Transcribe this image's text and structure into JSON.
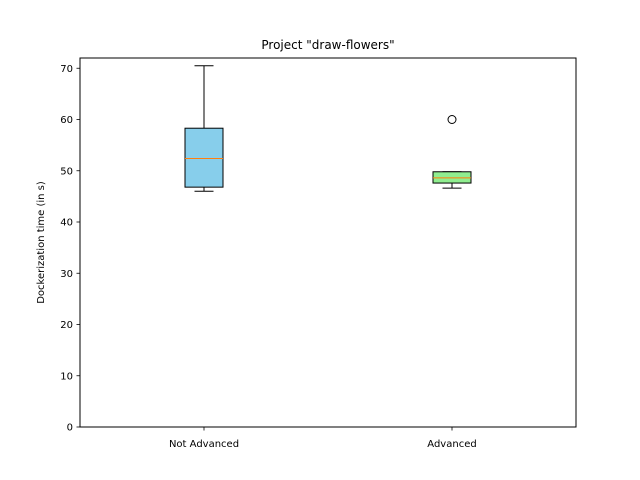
{
  "chart_data": {
    "type": "box",
    "title": "Project \"draw-flowers\"",
    "xlabel": "",
    "ylabel": "Dockerization time (in s)",
    "ylim": [
      0,
      72
    ],
    "yticks": [
      0,
      10,
      20,
      30,
      40,
      50,
      60,
      70
    ],
    "categories": [
      "Not Advanced",
      "Advanced"
    ],
    "boxes": [
      {
        "category": "Not Advanced",
        "whisker_low": 46.0,
        "q1": 46.8,
        "median": 52.4,
        "q3": 58.3,
        "whisker_high": 70.5,
        "outliers": [],
        "fill": "#87ceeb"
      },
      {
        "category": "Advanced",
        "whisker_low": 46.6,
        "q1": 47.6,
        "median": 48.6,
        "q3": 49.8,
        "whisker_high": 49.8,
        "outliers": [
          60.0
        ],
        "fill": "#90ee90"
      }
    ],
    "median_color": "#ff7f0e",
    "grid": false,
    "legend": "none"
  }
}
